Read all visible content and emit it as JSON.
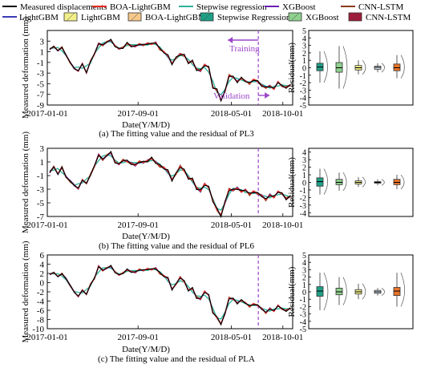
{
  "legend": {
    "row1": [
      {
        "label": "Measured displacements",
        "color": "#000000",
        "kind": "line"
      },
      {
        "label": "BOA-LightGBM",
        "color": "#e8281e",
        "kind": "line"
      },
      {
        "label": "Stepwise regression",
        "color": "#2bb39b",
        "kind": "line"
      },
      {
        "label": "XGBoost",
        "color": "#6a1fb5",
        "kind": "line"
      },
      {
        "label": "CNN-LSTM",
        "color": "#8b3a1a",
        "kind": "line"
      }
    ],
    "row2": [
      {
        "label": "LightGBM",
        "color": "#3b3bb8",
        "kind": "line"
      },
      {
        "label": "LightGBM",
        "color": "#f2ef8a",
        "kind": "box"
      },
      {
        "label": "BOA-LightGBM",
        "color": "#f6c88a",
        "kind": "box"
      },
      {
        "label": "Stepwise Regression",
        "color": "#1f9f86",
        "kind": "box"
      },
      {
        "label": "XGBoost",
        "color": "#8fd08f",
        "kind": "box"
      },
      {
        "label": "CNN-LSTM",
        "color": "#a01c3a",
        "kind": "box"
      }
    ]
  },
  "colors": {
    "measured": "#000000",
    "boa": "#e8281e",
    "stepwise": "#2bb39b",
    "xgboost": "#6a1fb5",
    "cnnlstm": "#8b3a1a",
    "lightgbm": "#3b3bb8",
    "split": "#9b45c9"
  },
  "annotations": {
    "training": "Training",
    "validation": "Validation"
  },
  "chart_data": [
    {
      "type": "line",
      "caption": "(a) The fitting value and the residual of PL3",
      "xlabel": "Date(Y/M/D)",
      "ylabel": "Measured deformation (mm)",
      "x_ticks": [
        "2017-01-01",
        "2017-09-01",
        "2018-05-01",
        "2018-10-01"
      ],
      "y_ticks": [
        3,
        1,
        -1,
        -3,
        -5,
        -7,
        -9
      ],
      "ylim": [
        -9,
        5
      ],
      "split_fraction": 0.86,
      "measured_series": [
        1.5,
        2.0,
        1.2,
        1.8,
        0.4,
        -1.0,
        -2.1,
        -2.6,
        -1.2,
        -3.0,
        -0.8,
        0.6,
        2.6,
        2.2,
        2.9,
        3.2,
        2.1,
        1.5,
        1.8,
        2.6,
        2.1,
        2.0,
        2.5,
        2.2,
        2.6,
        2.4,
        2.8,
        1.5,
        1.0,
        0.2,
        -1.2,
        -0.2,
        0.6,
        0.3,
        -1.0,
        -0.8,
        -2.3,
        -2.6,
        -1.4,
        -2.0,
        -5.6,
        -6.2,
        -8.0,
        -6.5,
        -3.4,
        -3.8,
        -4.6,
        -4.0,
        -4.4,
        -5.0,
        -4.2,
        -4.6,
        -5.3,
        -5.8,
        -5.4,
        -6.0,
        -4.6,
        -5.5,
        -5.7,
        -5.3
      ]
    },
    {
      "type": "line",
      "caption": "(b) The fitting value and the residual of PL6",
      "xlabel": "Date(Y/M/D)",
      "ylabel": "Measured deformation (mm)",
      "x_ticks": [
        "2017-01-01",
        "2017-09-01",
        "2018-05-01",
        "2018-10-01"
      ],
      "y_ticks": [
        3,
        1,
        -1,
        -3,
        -5,
        -7
      ],
      "ylim": [
        -7,
        3
      ],
      "split_fraction": 0.86,
      "measured_series": [
        -0.5,
        0.3,
        -0.8,
        0.2,
        -1.2,
        -1.8,
        -2.4,
        -2.9,
        -1.6,
        -2.2,
        -0.9,
        0.4,
        2.1,
        1.3,
        2.0,
        2.4,
        1.0,
        0.6,
        1.3,
        1.1,
        0.8,
        0.5,
        1.1,
        0.9,
        1.2,
        1.5,
        1.0,
        0.4,
        0.2,
        -0.4,
        -1.6,
        -0.8,
        0.4,
        -0.3,
        -1.3,
        -1.6,
        -2.8,
        -3.3,
        -2.2,
        -2.8,
        -4.6,
        -6.0,
        -6.8,
        -5.0,
        -3.0,
        -3.2,
        -2.8,
        -3.4,
        -3.0,
        -3.8,
        -3.3,
        -3.7,
        -3.9,
        -4.6,
        -3.8,
        -4.2,
        -3.3,
        -3.7,
        -4.4,
        -4.1
      ]
    },
    {
      "type": "line",
      "caption": "(c) The fitting value and the residual of PLA",
      "xlabel": "Date(Y/M/D)",
      "ylabel": "Measured deformation (mm)",
      "x_ticks": [
        "2017-01-01",
        "2017-09-01",
        "2018-05-01",
        "2018-10-01"
      ],
      "y_ticks": [
        6,
        4,
        2,
        0,
        -2,
        -4,
        -6,
        -8,
        -10
      ],
      "ylim": [
        -10,
        6
      ],
      "split_fraction": 0.86,
      "measured_series": [
        1.8,
        2.2,
        1.3,
        1.9,
        0.9,
        -0.6,
        -2.0,
        -3.0,
        -1.6,
        -2.6,
        -0.4,
        0.9,
        3.6,
        2.6,
        3.2,
        3.6,
        2.3,
        1.6,
        2.1,
        2.8,
        2.4,
        2.2,
        2.9,
        2.6,
        3.0,
        2.8,
        3.2,
        2.0,
        1.5,
        0.9,
        -1.4,
        -0.4,
        1.2,
        0.2,
        -1.6,
        -1.3,
        -3.2,
        -3.6,
        -1.9,
        -2.8,
        -6.4,
        -7.6,
        -8.9,
        -6.8,
        -3.3,
        -3.6,
        -4.4,
        -3.9,
        -4.3,
        -5.2,
        -4.6,
        -5.0,
        -5.6,
        -6.6,
        -5.6,
        -6.2,
        -4.9,
        -5.8,
        -6.1,
        -5.6
      ]
    }
  ],
  "residual_panels": [
    {
      "ylabel": "Residual(mm)",
      "y_ticks": [
        5,
        4,
        3,
        2,
        1,
        0,
        -1,
        -2,
        -3,
        -4,
        -5
      ],
      "ylim": [
        -5,
        5
      ],
      "boxes": [
        {
          "model": "BOA-LightGBM",
          "median": 0.1,
          "q1": -0.4,
          "q3": 0.6,
          "low": -2.0,
          "high": 2.2
        },
        {
          "model": "LightGBM",
          "median": 0.0,
          "q1": -0.6,
          "q3": 0.7,
          "low": -2.8,
          "high": 2.9
        },
        {
          "model": "Stepwise Regression",
          "median": 0.0,
          "q1": -0.3,
          "q3": 0.3,
          "low": -0.9,
          "high": 1.0
        },
        {
          "model": "XGBoost",
          "median": 0.05,
          "q1": -0.2,
          "q3": 0.2,
          "low": -0.6,
          "high": 0.6
        },
        {
          "model": "CNN-LSTM",
          "median": 0.0,
          "q1": -0.4,
          "q3": 0.5,
          "low": -1.4,
          "high": 1.7
        }
      ]
    },
    {
      "ylabel": "Residual(mm)",
      "y_ticks": [
        4,
        3,
        2,
        1,
        0,
        -1,
        -2,
        -3,
        -4
      ],
      "ylim": [
        -4.5,
        4.5
      ],
      "boxes": [
        {
          "model": "BOA-LightGBM",
          "median": 0.1,
          "q1": -0.5,
          "q3": 0.6,
          "low": -1.6,
          "high": 1.8
        },
        {
          "model": "LightGBM",
          "median": 0.0,
          "q1": -0.3,
          "q3": 0.4,
          "low": -1.1,
          "high": 1.3
        },
        {
          "model": "Stepwise Regression",
          "median": 0.0,
          "q1": -0.2,
          "q3": 0.2,
          "low": -0.6,
          "high": 0.7
        },
        {
          "model": "XGBoost",
          "median": 0.0,
          "q1": -0.1,
          "q3": 0.1,
          "low": -0.4,
          "high": 0.4
        },
        {
          "model": "CNN-LSTM",
          "median": 0.0,
          "q1": -0.3,
          "q3": 0.4,
          "low": -0.9,
          "high": 1.0
        }
      ]
    },
    {
      "ylabel": "Residual(mm)",
      "y_ticks": [
        5,
        4,
        3,
        2,
        1,
        0,
        -1,
        -2,
        -3,
        -4,
        -5
      ],
      "ylim": [
        -5,
        5
      ],
      "boxes": [
        {
          "model": "BOA-LightGBM",
          "median": 0.1,
          "q1": -0.6,
          "q3": 0.7,
          "low": -2.5,
          "high": 2.6
        },
        {
          "model": "LightGBM",
          "median": 0.0,
          "q1": -0.4,
          "q3": 0.5,
          "low": -1.8,
          "high": 2.0
        },
        {
          "model": "Stepwise Regression",
          "median": 0.0,
          "q1": -0.3,
          "q3": 0.3,
          "low": -1.0,
          "high": 1.1
        },
        {
          "model": "XGBoost",
          "median": 0.0,
          "q1": -0.2,
          "q3": 0.2,
          "low": -0.5,
          "high": 0.5
        },
        {
          "model": "CNN-LSTM",
          "median": 0.1,
          "q1": -0.5,
          "q3": 0.6,
          "low": -2.0,
          "high": 2.6
        }
      ]
    }
  ]
}
